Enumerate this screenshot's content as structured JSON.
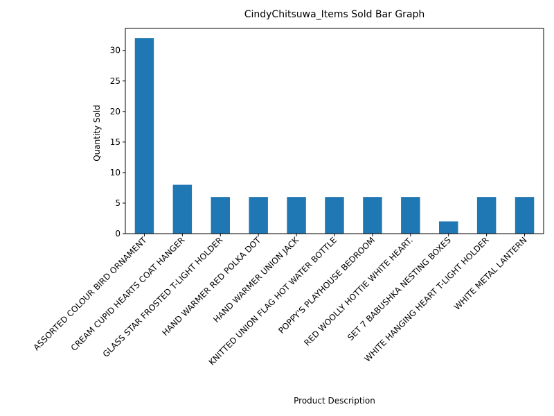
{
  "chart_data": {
    "type": "bar",
    "title": "CindyChitsuwa_Items Sold Bar Graph",
    "xlabel": "Product Description",
    "ylabel": "Quantity Sold",
    "categories": [
      "ASSORTED COLOUR BIRD ORNAMENT",
      "CREAM CUPID HEARTS COAT HANGER",
      "GLASS STAR FROSTED T-LIGHT HOLDER",
      "HAND WARMER RED POLKA DOT",
      "HAND WARMER UNION JACK",
      "KNITTED UNION FLAG HOT WATER BOTTLE",
      "POPPY'S PLAYHOUSE BEDROOM",
      "RED WOOLLY HOTTIE WHITE HEART.",
      "SET 7 BABUSHKA NESTING BOXES",
      "WHITE HANGING HEART T-LIGHT HOLDER",
      "WHITE METAL LANTERN"
    ],
    "values": [
      32,
      8,
      6,
      6,
      6,
      6,
      6,
      6,
      2,
      6,
      6
    ],
    "ylim": [
      0,
      33.6
    ],
    "yticks": [
      0,
      5,
      10,
      15,
      20,
      25,
      30
    ],
    "bar_color": "#1f77b4",
    "grid": false,
    "legend": "none"
  }
}
